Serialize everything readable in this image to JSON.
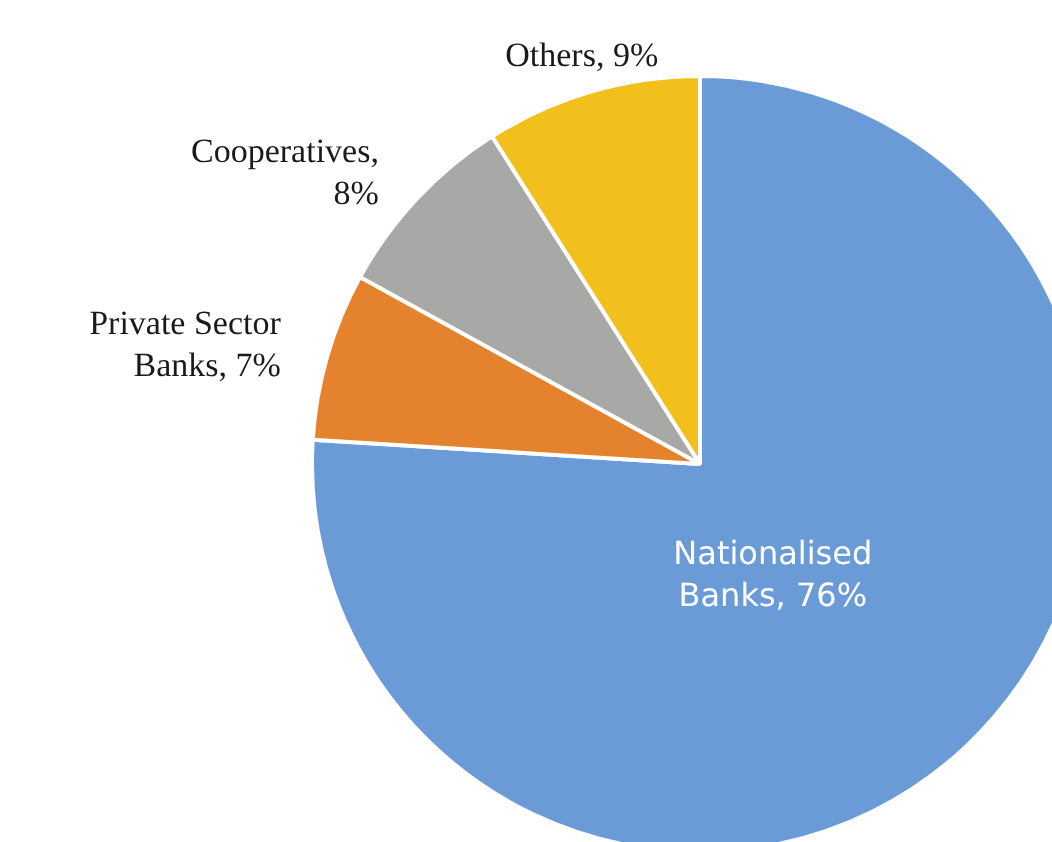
{
  "chart_data": {
    "type": "pie",
    "categories": [
      "Nationalised Banks, 76%",
      "Private Sector Banks, 7%",
      "Cooperatives, 8%",
      "Others, 9%"
    ],
    "values": [
      76,
      7,
      8,
      9
    ],
    "colors": [
      "#6b9bd6",
      "#e5822e",
      "#a8a8a6",
      "#f2c01c"
    ],
    "legend": false
  }
}
